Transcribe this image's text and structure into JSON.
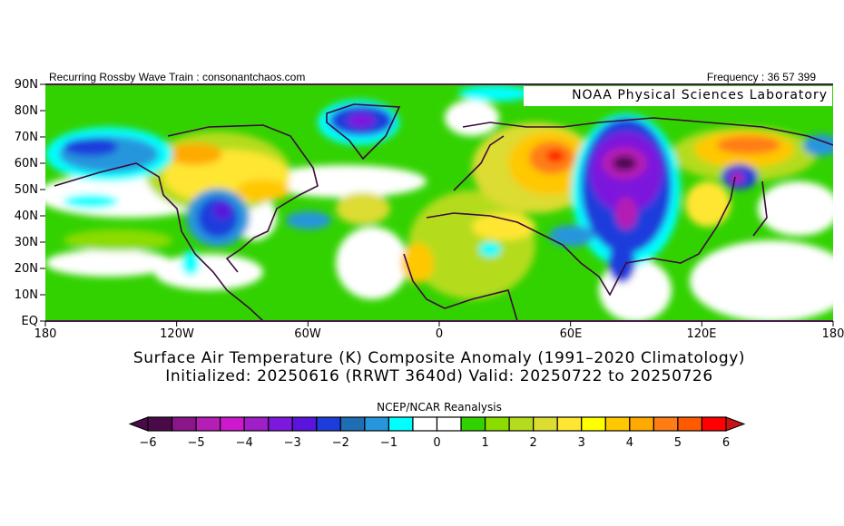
{
  "header": {
    "left": "Recurring Rossby Wave Train : consonantchaos.com",
    "right": "Frequency : 36 57 399",
    "lab": "NOAA Physical Sciences Laboratory"
  },
  "map": {
    "lat_labels": [
      "90N",
      "80N",
      "70N",
      "60N",
      "50N",
      "40N",
      "30N",
      "20N",
      "10N",
      "EQ"
    ],
    "lon_labels": [
      "180",
      "120W",
      "60W",
      "0",
      "60E",
      "120E",
      "180"
    ]
  },
  "title": {
    "line1": "Surface Air Temperature (K) Composite Anomaly (1991–2020 Climatology)",
    "line2": "Initialized: 20250616 (RRWT 3640d) Valid: 20250722 to 20250726"
  },
  "colorbar": {
    "title": "NCEP/NCAR Reanalysis",
    "labels": [
      "-6",
      "-5",
      "-4",
      "-3",
      "-2",
      "-1",
      "0",
      "1",
      "2",
      "3",
      "4",
      "5",
      "6"
    ],
    "range": [
      -6,
      6
    ],
    "step": 0.5,
    "colors": [
      "#4a0a4a",
      "#8b158b",
      "#b41eb4",
      "#cd19cd",
      "#a01ec8",
      "#7d19dc",
      "#5a14dc",
      "#1e3cdc",
      "#1e6eb4",
      "#2896dc",
      "#00ffff",
      "#ffffff",
      "#ffffff",
      "#32d200",
      "#8cdc00",
      "#b4dc1e",
      "#dcdc32",
      "#ffe632",
      "#ffff00",
      "#ffc800",
      "#ffaa00",
      "#ff7d14",
      "#ff5a00",
      "#ff0000"
    ],
    "under_color": "#4a0a4a",
    "over_color": "#c81414"
  }
}
